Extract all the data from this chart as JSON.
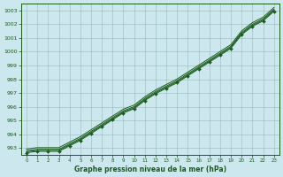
{
  "title": "Graphe pression niveau de la mer (hPa)",
  "bg_color": "#cce8ee",
  "line_color": "#1a5c1a",
  "marker_color": "#1a5c1a",
  "grid_color": "#99bbbb",
  "xlabel": "Graphe pression niveau de la mer (hPa)",
  "ylim": [
    992.5,
    1003.5
  ],
  "xlim": [
    -0.5,
    23.5
  ],
  "yticks": [
    993,
    994,
    995,
    996,
    997,
    998,
    999,
    1000,
    1001,
    1002,
    1003
  ],
  "xticks": [
    0,
    1,
    2,
    3,
    4,
    5,
    6,
    7,
    8,
    9,
    10,
    11,
    12,
    13,
    14,
    15,
    16,
    17,
    18,
    19,
    20,
    21,
    22,
    23
  ],
  "series_main": [
    992.8,
    992.9,
    992.9,
    992.9,
    993.3,
    993.7,
    994.2,
    994.7,
    995.2,
    995.7,
    996.0,
    996.6,
    997.1,
    997.5,
    997.9,
    998.4,
    998.9,
    999.4,
    999.9,
    1000.4,
    1001.4,
    1002.0,
    1002.4,
    1003.1
  ],
  "offsets": [
    -0.15,
    -0.08,
    0.0,
    0.12
  ],
  "marker_series_idx": 0
}
